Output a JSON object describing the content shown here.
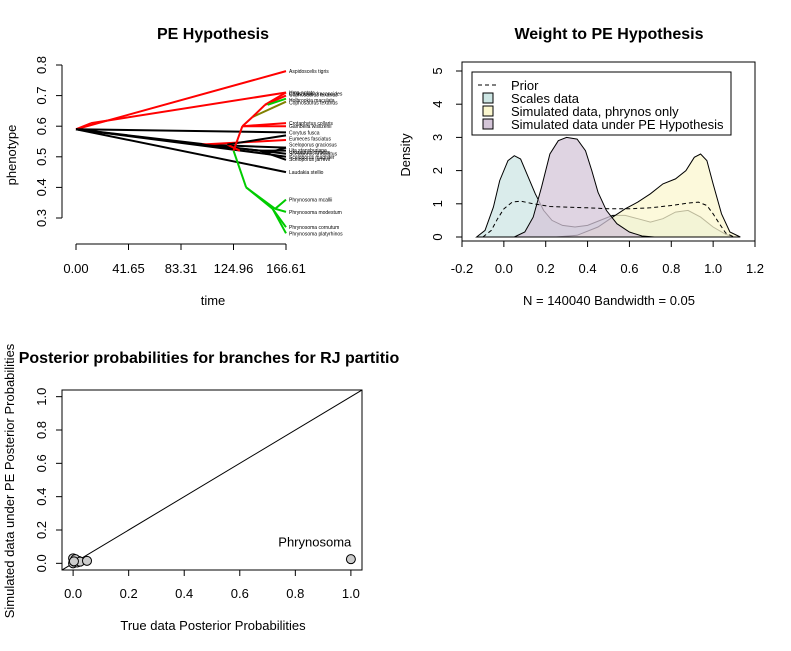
{
  "chart_data": [
    {
      "type": "line",
      "title": "PE Hypothesis",
      "xlabel": "time",
      "ylabel": "phenotype",
      "x_ticks": [
        "0.00",
        "41.65",
        "83.31",
        "124.96",
        "166.61"
      ],
      "y_ticks": [
        "0.3",
        "0.4",
        "0.5",
        "0.6",
        "0.7",
        "0.8"
      ],
      "xlim": [
        0,
        166.61
      ],
      "ylim": [
        0.3,
        0.8
      ],
      "colors": {
        "red": "#ff0000",
        "black": "#000000",
        "green": "#00cc00",
        "olive": "#808000"
      },
      "segments": [
        {
          "from": [
            0,
            0.59
          ],
          "to": [
            166.61,
            0.78
          ],
          "color": "red"
        },
        {
          "from": [
            0,
            0.59
          ],
          "to": [
            12,
            0.61
          ],
          "color": "red"
        },
        {
          "from": [
            12,
            0.61
          ],
          "to": [
            166.61,
            0.71
          ],
          "color": "red"
        },
        {
          "from": [
            0,
            0.59
          ],
          "to": [
            166.61,
            0.58
          ],
          "color": "black"
        },
        {
          "from": [
            0,
            0.59
          ],
          "to": [
            100,
            0.54
          ],
          "color": "black"
        },
        {
          "from": [
            100,
            0.54
          ],
          "to": [
            166.61,
            0.53
          ],
          "color": "black"
        },
        {
          "from": [
            0,
            0.59
          ],
          "to": [
            166.61,
            0.45
          ],
          "color": "black"
        },
        {
          "from": [
            0,
            0.59
          ],
          "to": [
            146,
            0.52
          ],
          "color": "black"
        },
        {
          "from": [
            146,
            0.52
          ],
          "to": [
            166.61,
            0.51
          ],
          "color": "black"
        },
        {
          "from": [
            0,
            0.59
          ],
          "to": [
            150,
            0.51
          ],
          "color": "black"
        },
        {
          "from": [
            150,
            0.51
          ],
          "to": [
            166.61,
            0.5
          ],
          "color": "black"
        },
        {
          "from": [
            100,
            0.54
          ],
          "to": [
            166.61,
            0.555
          ],
          "color": "red"
        },
        {
          "from": [
            100,
            0.54
          ],
          "to": [
            146,
            0.52
          ],
          "color": "black"
        },
        {
          "from": [
            146,
            0.52
          ],
          "to": [
            166.61,
            0.52
          ],
          "color": "black"
        },
        {
          "from": [
            146,
            0.52
          ],
          "to": [
            166.61,
            0.49
          ],
          "color": "black"
        },
        {
          "from": [
            150,
            0.51
          ],
          "to": [
            166.61,
            0.53
          ],
          "color": "black"
        },
        {
          "from": [
            120,
            0.54
          ],
          "to": [
            130,
            0.52
          ],
          "color": "red"
        },
        {
          "from": [
            120,
            0.54
          ],
          "to": [
            166.61,
            0.57
          ],
          "color": "black"
        },
        {
          "from": [
            125,
            0.52
          ],
          "to": [
            132,
            0.6
          ],
          "color": "red"
        },
        {
          "from": [
            132,
            0.6
          ],
          "to": [
            166.61,
            0.61
          ],
          "color": "red"
        },
        {
          "from": [
            132,
            0.6
          ],
          "to": [
            166.61,
            0.6
          ],
          "color": "red"
        },
        {
          "from": [
            132,
            0.6
          ],
          "to": [
            140,
            0.63
          ],
          "color": "red"
        },
        {
          "from": [
            140,
            0.63
          ],
          "to": [
            166.61,
            0.68
          ],
          "color": "olive"
        },
        {
          "from": [
            140,
            0.63
          ],
          "to": [
            150,
            0.67
          ],
          "color": "red"
        },
        {
          "from": [
            150,
            0.67
          ],
          "to": [
            166.61,
            0.71
          ],
          "color": "red"
        },
        {
          "from": [
            150,
            0.67
          ],
          "to": [
            166.61,
            0.7
          ],
          "color": "red"
        },
        {
          "from": [
            152,
            0.67
          ],
          "to": [
            166.61,
            0.69
          ],
          "color": "green"
        },
        {
          "from": [
            125,
            0.52
          ],
          "to": [
            135,
            0.4
          ],
          "color": "green"
        },
        {
          "from": [
            135,
            0.4
          ],
          "to": [
            158,
            0.33
          ],
          "color": "green"
        },
        {
          "from": [
            158,
            0.33
          ],
          "to": [
            166.61,
            0.36
          ],
          "color": "green"
        },
        {
          "from": [
            158,
            0.33
          ],
          "to": [
            166.61,
            0.32
          ],
          "color": "green"
        },
        {
          "from": [
            135,
            0.4
          ],
          "to": [
            156,
            0.33
          ],
          "color": "green"
        },
        {
          "from": [
            156,
            0.33
          ],
          "to": [
            166.61,
            0.27
          ],
          "color": "green"
        },
        {
          "from": [
            156,
            0.33
          ],
          "to": [
            166.61,
            0.25
          ],
          "color": "green"
        }
      ],
      "tips": [
        {
          "name": "Aspidoscelis tigris",
          "y": 0.78
        },
        {
          "name": "Uma notata",
          "y": 0.71
        },
        {
          "name": "Callisaurus draconoides",
          "y": 0.707
        },
        {
          "name": "Cophosaurus texanus",
          "y": 0.703
        },
        {
          "name": "Holbrookia maculata",
          "y": 0.685
        },
        {
          "name": "Cophosaurus texanus",
          "y": 0.677
        },
        {
          "name": "Crotaphytus collaris",
          "y": 0.61
        },
        {
          "name": "Gambelia wislizenii",
          "y": 0.6
        },
        {
          "name": "Corytus fusca",
          "y": 0.58
        },
        {
          "name": "Eumeces fasciatus",
          "y": 0.56
        },
        {
          "name": "Sceloporus graciosus",
          "y": 0.54
        },
        {
          "name": "Uta stansburiana",
          "y": 0.523
        },
        {
          "name": "Urosaurus ornatus",
          "y": 0.515
        },
        {
          "name": "Sceloporus undulatus",
          "y": 0.51
        },
        {
          "name": "Sceloporus magister",
          "y": 0.5
        },
        {
          "name": "Sceloporus jarrovii",
          "y": 0.492
        },
        {
          "name": "Laudakia stellio",
          "y": 0.45
        },
        {
          "name": "Phrynosoma mcallii",
          "y": 0.36
        },
        {
          "name": "Phrynosoma modestum",
          "y": 0.32
        },
        {
          "name": "Phrynosoma cornutum",
          "y": 0.27
        },
        {
          "name": "Phrynosoma platyrhinos",
          "y": 0.25
        }
      ]
    },
    {
      "type": "area",
      "title": "Weight to PE Hypothesis",
      "xlabel": "N = 140040   Bandwidth = 0.05",
      "ylabel": "Density",
      "x_ticks": [
        "-0.2",
        "0.0",
        "0.2",
        "0.4",
        "0.6",
        "0.8",
        "1.0",
        "1.2"
      ],
      "y_ticks": [
        "0",
        "1",
        "2",
        "3",
        "4",
        "5"
      ],
      "xlim": [
        -0.2,
        1.2
      ],
      "ylim": [
        0,
        5
      ],
      "legend_position": "top-left",
      "legend": [
        {
          "label": "Prior",
          "style": "dashed"
        },
        {
          "label": "Scales data",
          "color": "#cde6e4"
        },
        {
          "label": "Simulated data, phrynos only",
          "color": "#fbf7cf"
        },
        {
          "label": "Simulated data under PE Hypothesis",
          "color": "#d4c5d8"
        }
      ],
      "series": [
        {
          "name": "Scales data",
          "color": "#cde6e4",
          "x": [
            -0.13,
            -0.09,
            -0.05,
            -0.02,
            0.02,
            0.05,
            0.08,
            0.11,
            0.15,
            0.19,
            0.23,
            0.28,
            0.34,
            0.4,
            0.46,
            0.52,
            0.58,
            0.64,
            0.7,
            0.76,
            0.82,
            0.88,
            0.94,
            1.0,
            1.06,
            1.1
          ],
          "y": [
            0,
            0.2,
            0.9,
            1.7,
            2.3,
            2.45,
            2.35,
            1.9,
            1.3,
            0.8,
            0.5,
            0.35,
            0.3,
            0.35,
            0.5,
            0.65,
            0.65,
            0.55,
            0.45,
            0.55,
            0.75,
            0.8,
            0.6,
            0.3,
            0.08,
            0
          ]
        },
        {
          "name": "Simulated data, phrynos only",
          "color": "#fbf7cf",
          "x": [
            0.25,
            0.35,
            0.45,
            0.52,
            0.58,
            0.64,
            0.7,
            0.76,
            0.82,
            0.87,
            0.91,
            0.94,
            0.97,
            1.0,
            1.04,
            1.08,
            1.13
          ],
          "y": [
            0,
            0.05,
            0.3,
            0.6,
            0.85,
            1.05,
            1.3,
            1.6,
            1.75,
            2.0,
            2.4,
            2.5,
            2.3,
            1.6,
            0.7,
            0.15,
            0
          ]
        },
        {
          "name": "Simulated data under PE Hypothesis",
          "color": "#d4c5d8",
          "x": [
            0.05,
            0.1,
            0.14,
            0.18,
            0.22,
            0.26,
            0.3,
            0.35,
            0.39,
            0.42,
            0.45,
            0.49,
            0.54,
            0.6,
            0.66,
            0.72
          ],
          "y": [
            0,
            0.15,
            0.6,
            1.5,
            2.5,
            2.9,
            3.0,
            2.95,
            2.6,
            2.0,
            1.35,
            0.8,
            0.4,
            0.15,
            0.03,
            0
          ]
        },
        {
          "name": "Prior",
          "style": "dashed",
          "x": [
            -0.1,
            -0.06,
            -0.03,
            0.0,
            0.04,
            0.08,
            0.14,
            0.22,
            0.3,
            0.4,
            0.5,
            0.6,
            0.7,
            0.8,
            0.88,
            0.93,
            0.97,
            1.0,
            1.03,
            1.06,
            1.1
          ],
          "y": [
            0,
            0.2,
            0.55,
            0.85,
            1.05,
            1.08,
            1.0,
            0.92,
            0.9,
            0.88,
            0.85,
            0.85,
            0.88,
            0.95,
            1.02,
            1.05,
            0.95,
            0.7,
            0.4,
            0.12,
            0
          ]
        }
      ]
    },
    {
      "type": "scatter",
      "title": "Posterior probabilities for branches for RJ partitio",
      "xlabel": "True data Posterior Probabilities",
      "ylabel": "Simulated data under PE Posterior Probabilities",
      "x_ticks": [
        "0.0",
        "0.2",
        "0.4",
        "0.6",
        "0.8",
        "1.0"
      ],
      "y_ticks": [
        "0.0",
        "0.2",
        "0.4",
        "0.6",
        "0.8",
        "1.0"
      ],
      "xlim": [
        -0.04,
        1.04
      ],
      "ylim": [
        -0.04,
        1.04
      ],
      "point_color": "#cccccc",
      "reference_line": [
        [
          -0.04,
          -0.04
        ],
        [
          1.04,
          1.04
        ]
      ],
      "points": [
        {
          "x": 0.0,
          "y": 0.0
        },
        {
          "x": 0.005,
          "y": 0.01
        },
        {
          "x": 0.01,
          "y": 0.02
        },
        {
          "x": 0.0,
          "y": 0.03
        },
        {
          "x": 0.015,
          "y": 0.005
        },
        {
          "x": 0.02,
          "y": 0.015
        },
        {
          "x": 0.008,
          "y": 0.025
        },
        {
          "x": 0.025,
          "y": 0.01
        },
        {
          "x": 0.003,
          "y": 0.012
        },
        {
          "x": 0.05,
          "y": 0.015
        },
        {
          "x": 1.0,
          "y": 0.025
        }
      ],
      "annotations": [
        {
          "text": "Phrynosoma",
          "x": 0.87,
          "y": 0.1
        }
      ]
    }
  ]
}
